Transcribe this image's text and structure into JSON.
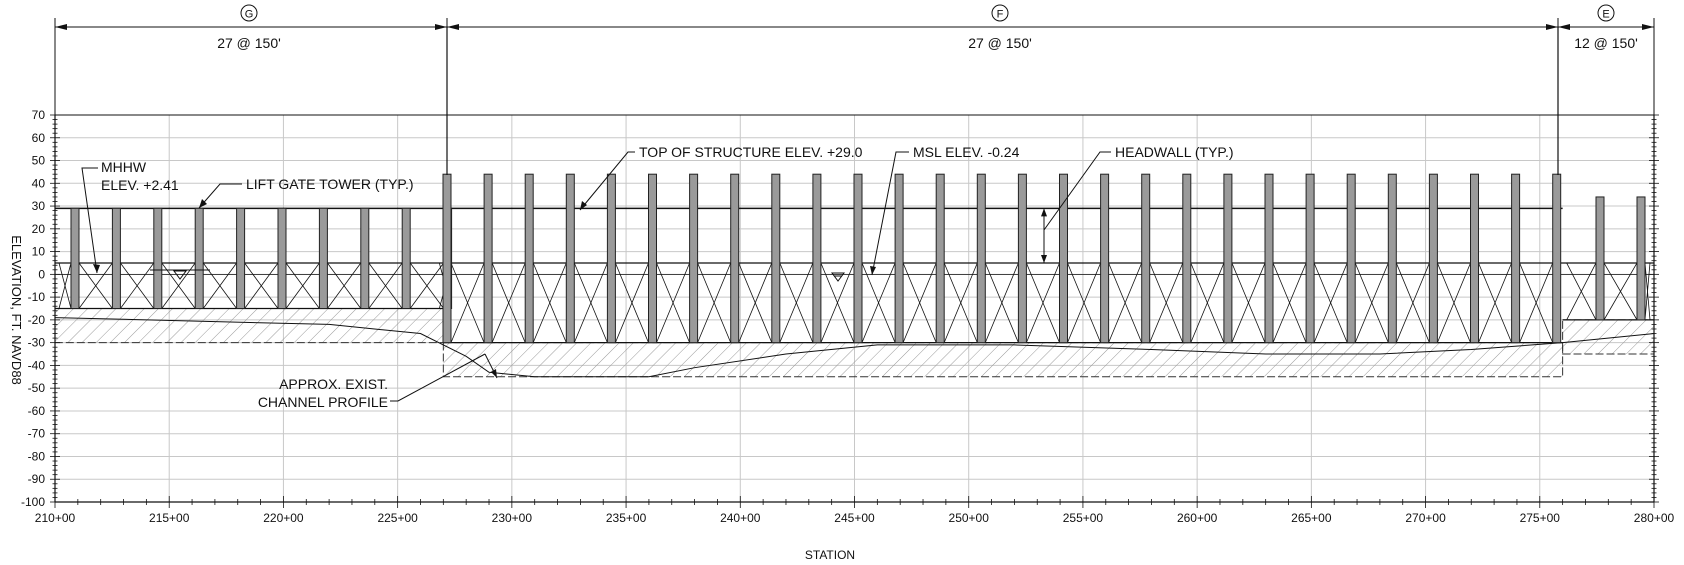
{
  "dimensions": [
    {
      "segment": "G",
      "label": "27 @ 150'"
    },
    {
      "segment": "F",
      "label": "27 @ 150'"
    },
    {
      "segment": "E",
      "label": "12 @ 150'"
    }
  ],
  "axes": {
    "y_label": "ELEVATION, FT. NAVD88",
    "x_label": "STATION",
    "y_ticks": [
      "70",
      "60",
      "50",
      "40",
      "30",
      "20",
      "10",
      "0",
      "-10",
      "-20",
      "-30",
      "-40",
      "-50",
      "-60",
      "-70",
      "-80",
      "-90",
      "-100"
    ],
    "x_ticks": [
      "210+00",
      "215+00",
      "220+00",
      "225+00",
      "230+00",
      "235+00",
      "240+00",
      "245+00",
      "250+00",
      "255+00",
      "260+00",
      "265+00",
      "270+00",
      "275+00",
      "280+00"
    ]
  },
  "annotations": {
    "mhhw_line1": "MHHW",
    "mhhw_line2": "ELEV. +2.41",
    "lift_gate": "LIFT GATE TOWER (TYP.)",
    "top_of_structure": "TOP OF STRUCTURE ELEV. +29.0",
    "msl": "MSL ELEV. -0.24",
    "headwall": "HEADWALL (TYP.)",
    "channel_line1": "APPROX. EXIST.",
    "channel_line2": "CHANNEL PROFILE"
  },
  "structure": {
    "top_of_structure_elev": 29.0,
    "mhhw_elev": 2.41,
    "msl_elev": -0.24,
    "section_breaks_station": [
      227,
      276
    ]
  }
}
